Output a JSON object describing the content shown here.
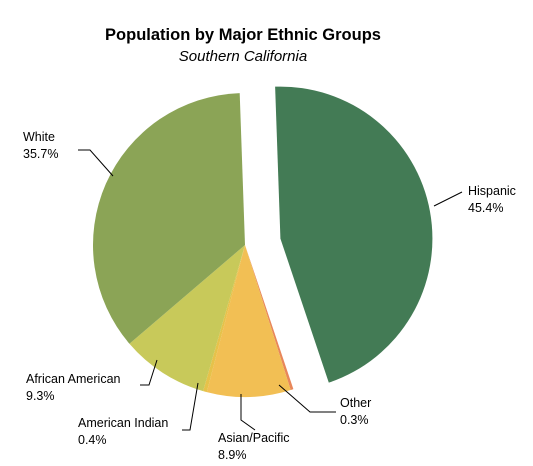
{
  "chart_data": {
    "type": "pie",
    "title": "Population by Major Ethnic Groups",
    "subtitle": "Southern California",
    "slices": [
      {
        "label": "Hispanic",
        "value": 45.4,
        "value_text": "45.4%",
        "color": "#437b55",
        "exploded": true
      },
      {
        "label": "Other",
        "value": 0.3,
        "value_text": "0.3%",
        "color": "#e8875a",
        "exploded": false
      },
      {
        "label": "Asian/Pacific",
        "value": 8.9,
        "value_text": "8.9%",
        "color": "#f2bf54",
        "exploded": false
      },
      {
        "label": "American Indian",
        "value": 0.4,
        "value_text": "0.4%",
        "color": "#e6c24a",
        "exploded": false
      },
      {
        "label": "African American",
        "value": 9.3,
        "value_text": "9.3%",
        "color": "#c8c95a",
        "exploded": false
      },
      {
        "label": "White",
        "value": 35.7,
        "value_text": "35.7%",
        "color": "#8ba456",
        "exploded": false
      }
    ],
    "legend": "none",
    "data_labels": "outside with leader lines"
  }
}
